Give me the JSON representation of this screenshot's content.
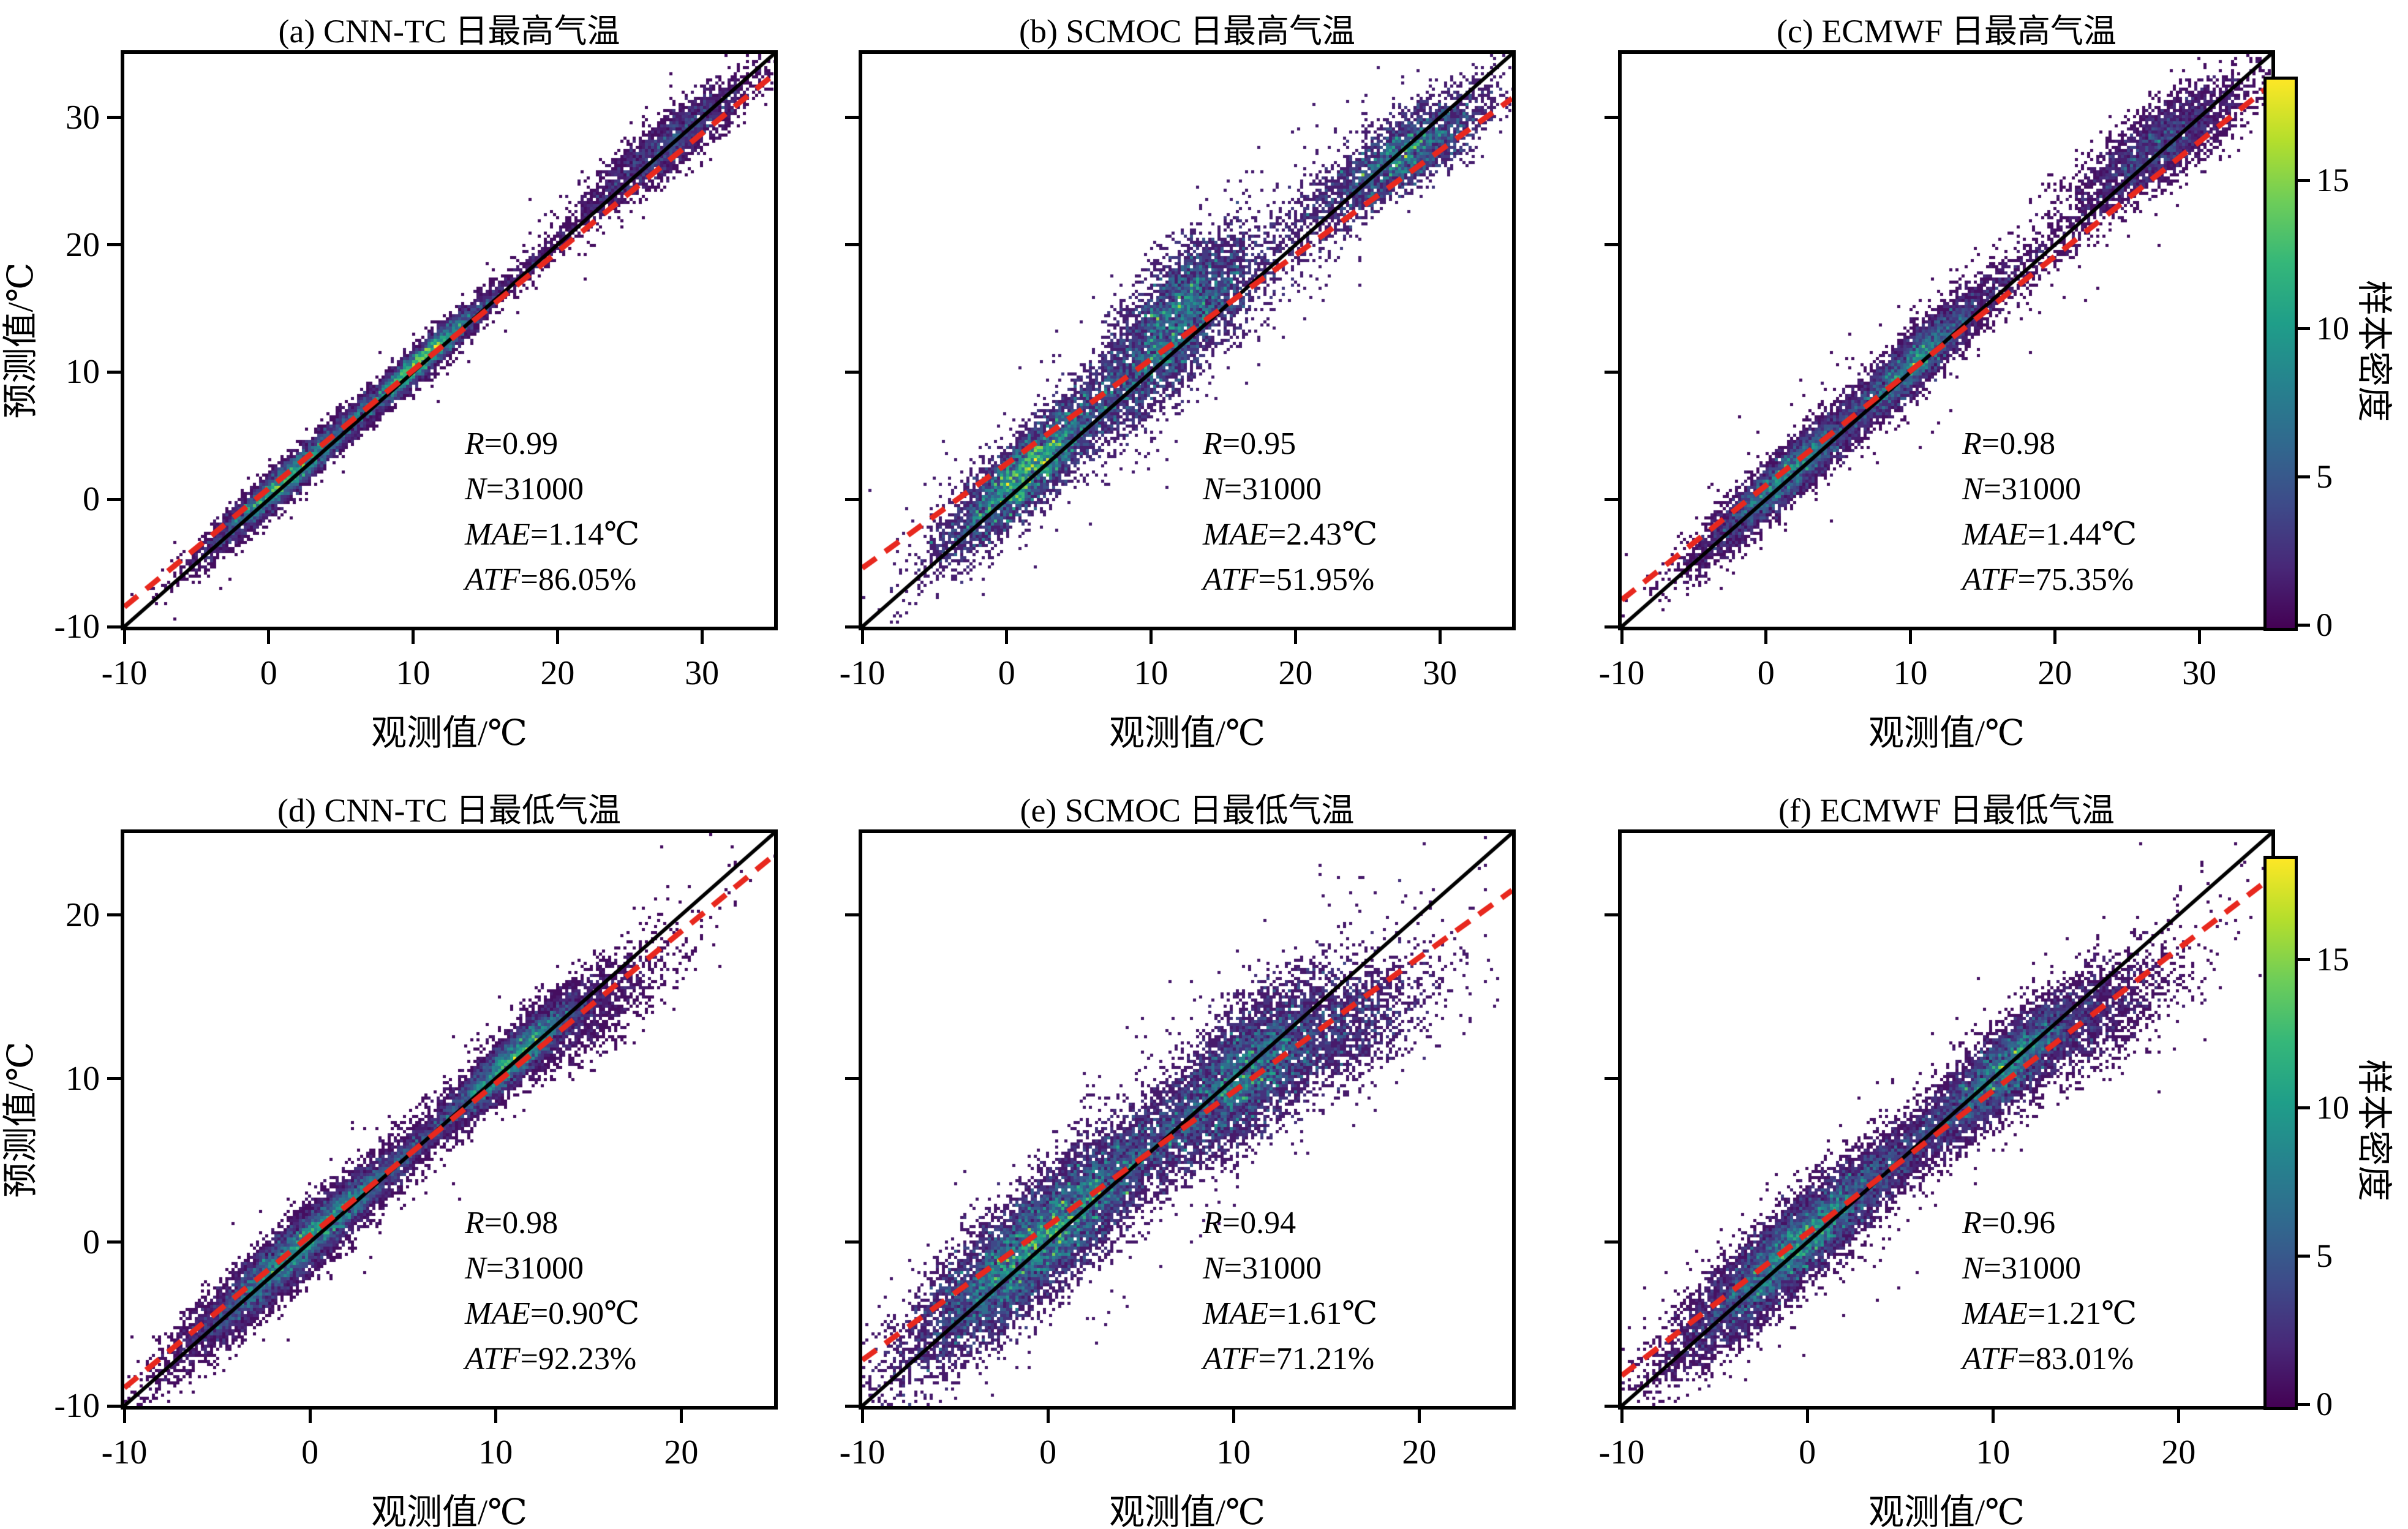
{
  "figure": {
    "colorbar": {
      "label": "样本密度",
      "ticks": [
        0,
        5,
        10,
        15
      ],
      "vmax": 18.5,
      "colormap": "viridis",
      "colormap_stops": [
        "#440154",
        "#482878",
        "#3e4a89",
        "#31688e",
        "#26828e",
        "#1f9e89",
        "#35b779",
        "#6dcd59",
        "#b4de2c",
        "#fde725"
      ]
    },
    "identity_line_color": "#000000",
    "fit_line_color": "#e8281e"
  },
  "chart_data": [
    {
      "id": "a",
      "type": "scatter-density",
      "title": "(a) CNN-TC 日最高气温",
      "xlabel": "观测值/℃",
      "ylabel": "预测值/℃",
      "xlim": [
        -10,
        35
      ],
      "ylim": [
        -10,
        35
      ],
      "xticks": [
        -10,
        0,
        10,
        20,
        30
      ],
      "yticks": [
        -10,
        0,
        10,
        20,
        30
      ],
      "stats": [
        {
          "label": "R",
          "value": "0.99"
        },
        {
          "label": "N",
          "value": "31000"
        },
        {
          "label": "MAE",
          "value": "1.14℃"
        },
        {
          "label": "ATF",
          "value": "86.05%"
        }
      ],
      "fit_line": {
        "slope": 0.93,
        "intercept": 0.85
      },
      "clusters": [
        {
          "x": 1.3,
          "y": 1.6,
          "sx": 2.8,
          "sy": 2.9,
          "rho": 0.965,
          "w": 0.4
        },
        {
          "x": 10.4,
          "y": 10.7,
          "sx": 2.3,
          "sy": 2.4,
          "rho": 0.955,
          "w": 0.32
        },
        {
          "x": 27.8,
          "y": 28.0,
          "sx": 2.9,
          "sy": 2.7,
          "rho": 0.9,
          "w": 0.2
        },
        {
          "x": 16.5,
          "y": 16.7,
          "sx": 5.5,
          "sy": 5.4,
          "rho": 0.995,
          "w": 0.06
        },
        {
          "x": 12.0,
          "y": 12.0,
          "sx": 12,
          "sy": 12,
          "rho": 0.99,
          "w": 0.02
        }
      ]
    },
    {
      "id": "b",
      "type": "scatter-density",
      "title": "(b) SCMOC 日最高气温",
      "xlabel": "观测值/℃",
      "ylabel": "预测值/℃",
      "xlim": [
        -10,
        35
      ],
      "ylim": [
        -10,
        35
      ],
      "xticks": [
        -10,
        0,
        10,
        20,
        30
      ],
      "yticks": [
        -10,
        0,
        10,
        20,
        30
      ],
      "stats": [
        {
          "label": "R",
          "value": "0.95"
        },
        {
          "label": "N",
          "value": "31000"
        },
        {
          "label": "MAE",
          "value": "2.43℃"
        },
        {
          "label": "ATF",
          "value": "51.95%"
        }
      ],
      "fit_line": {
        "slope": 0.82,
        "intercept": 2.8
      },
      "clusters": [
        {
          "x": 1.4,
          "y": 2.2,
          "sx": 3.0,
          "sy": 3.4,
          "rho": 0.88,
          "w": 0.36
        },
        {
          "x": 10.8,
          "y": 12.6,
          "sx": 2.6,
          "sy": 3.8,
          "rho": 0.72,
          "w": 0.27
        },
        {
          "x": 13.5,
          "y": 16.5,
          "sx": 2.2,
          "sy": 2.6,
          "rho": 0.55,
          "w": 0.07
        },
        {
          "x": 27.6,
          "y": 27.2,
          "sx": 2.8,
          "sy": 2.4,
          "rho": 0.78,
          "w": 0.2
        },
        {
          "x": 19.0,
          "y": 19.5,
          "sx": 5.5,
          "sy": 5.5,
          "rho": 0.93,
          "w": 0.07
        },
        {
          "x": 12.0,
          "y": 13.0,
          "sx": 12,
          "sy": 12,
          "rho": 0.95,
          "w": 0.03
        }
      ]
    },
    {
      "id": "c",
      "type": "scatter-density",
      "title": "(c) ECMWF 日最高气温",
      "xlabel": "观测值/℃",
      "ylabel": "预测值/℃",
      "xlim": [
        -10,
        35
      ],
      "ylim": [
        -10,
        35
      ],
      "xticks": [
        -10,
        0,
        10,
        20,
        30
      ],
      "yticks": [
        -10,
        0,
        10,
        20,
        30
      ],
      "stats": [
        {
          "label": "R",
          "value": "0.98"
        },
        {
          "label": "N",
          "value": "31000"
        },
        {
          "label": "MAE",
          "value": "1.44℃"
        },
        {
          "label": "ATF",
          "value": "75.35%"
        }
      ],
      "fit_line": {
        "slope": 0.9,
        "intercept": 1.1
      },
      "clusters": [
        {
          "x": 1.4,
          "y": 1.8,
          "sx": 2.9,
          "sy": 3.1,
          "rho": 0.93,
          "w": 0.38
        },
        {
          "x": 10.4,
          "y": 10.9,
          "sx": 2.4,
          "sy": 2.7,
          "rho": 0.9,
          "w": 0.31
        },
        {
          "x": 27.4,
          "y": 27.9,
          "sx": 3.0,
          "sy": 2.7,
          "rho": 0.8,
          "w": 0.22
        },
        {
          "x": 17.0,
          "y": 17.4,
          "sx": 5.5,
          "sy": 5.5,
          "rho": 0.97,
          "w": 0.06
        },
        {
          "x": 12.0,
          "y": 12.5,
          "sx": 12,
          "sy": 12,
          "rho": 0.97,
          "w": 0.03
        }
      ]
    },
    {
      "id": "d",
      "type": "scatter-density",
      "title": "(d) CNN-TC 日最低气温",
      "xlabel": "观测值/℃",
      "ylabel": "预测值/℃",
      "xlim": [
        -10,
        25
      ],
      "ylim": [
        -10,
        25
      ],
      "xticks": [
        -10,
        0,
        10,
        20
      ],
      "yticks": [
        -10,
        0,
        10,
        20
      ],
      "stats": [
        {
          "label": "R",
          "value": "0.98"
        },
        {
          "label": "N",
          "value": "31000"
        },
        {
          "label": "MAE",
          "value": "0.90℃"
        },
        {
          "label": "ATF",
          "value": "92.23%"
        }
      ],
      "fit_line": {
        "slope": 0.93,
        "intercept": 0.4
      },
      "clusters": [
        {
          "x": -0.8,
          "y": -0.6,
          "sx": 3.0,
          "sy": 3.1,
          "rho": 0.95,
          "w": 0.5
        },
        {
          "x": 10.8,
          "y": 11.0,
          "sx": 1.9,
          "sy": 2.0,
          "rho": 0.92,
          "w": 0.28
        },
        {
          "x": 4.5,
          "y": 4.6,
          "sx": 3.5,
          "sy": 3.5,
          "rho": 0.99,
          "w": 0.1
        },
        {
          "x": 14.5,
          "y": 13.8,
          "sx": 2.6,
          "sy": 2.2,
          "rho": 0.8,
          "w": 0.09
        },
        {
          "x": 5.0,
          "y": 5.0,
          "sx": 9,
          "sy": 9,
          "rho": 0.98,
          "w": 0.03
        }
      ]
    },
    {
      "id": "e",
      "type": "scatter-density",
      "title": "(e) SCMOC 日最低气温",
      "xlabel": "观测值/℃",
      "ylabel": "预测值/℃",
      "xlim": [
        -10,
        25
      ],
      "ylim": [
        -10,
        25
      ],
      "xticks": [
        -10,
        0,
        10,
        20
      ],
      "yticks": [
        -10,
        0,
        10,
        20
      ],
      "stats": [
        {
          "label": "R",
          "value": "0.94"
        },
        {
          "label": "N",
          "value": "31000"
        },
        {
          "label": "MAE",
          "value": "1.61℃"
        },
        {
          "label": "ATF",
          "value": "71.21%"
        }
      ],
      "fit_line": {
        "slope": 0.82,
        "intercept": 1.0
      },
      "clusters": [
        {
          "x": -0.9,
          "y": -0.3,
          "sx": 3.3,
          "sy": 3.6,
          "rho": 0.86,
          "w": 0.48
        },
        {
          "x": 10.6,
          "y": 10.2,
          "sx": 2.3,
          "sy": 2.8,
          "rho": 0.68,
          "w": 0.26
        },
        {
          "x": 4.5,
          "y": 4.8,
          "sx": 3.6,
          "sy": 3.8,
          "rho": 0.92,
          "w": 0.12
        },
        {
          "x": 15.5,
          "y": 12.8,
          "sx": 2.8,
          "sy": 2.4,
          "rho": 0.6,
          "w": 0.1
        },
        {
          "x": 5.0,
          "y": 5.0,
          "sx": 9,
          "sy": 9,
          "rho": 0.93,
          "w": 0.04
        }
      ]
    },
    {
      "id": "f",
      "type": "scatter-density",
      "title": "(f) ECMWF 日最低气温",
      "xlabel": "观测值/℃",
      "ylabel": "预测值/℃",
      "xlim": [
        -10,
        25
      ],
      "ylim": [
        -10,
        25
      ],
      "xticks": [
        -10,
        0,
        10,
        20
      ],
      "yticks": [
        -10,
        0,
        10,
        20
      ],
      "stats": [
        {
          "label": "R",
          "value": "0.96"
        },
        {
          "label": "N",
          "value": "31000"
        },
        {
          "label": "MAE",
          "value": "1.21℃"
        },
        {
          "label": "ATF",
          "value": "83.01%"
        }
      ],
      "fit_line": {
        "slope": 0.87,
        "intercept": 0.55
      },
      "clusters": [
        {
          "x": -0.9,
          "y": -0.5,
          "sx": 3.1,
          "sy": 3.3,
          "rho": 0.91,
          "w": 0.49
        },
        {
          "x": 10.7,
          "y": 10.6,
          "sx": 2.1,
          "sy": 2.3,
          "rho": 0.85,
          "w": 0.27
        },
        {
          "x": 4.5,
          "y": 4.7,
          "sx": 3.5,
          "sy": 3.6,
          "rho": 0.96,
          "w": 0.11
        },
        {
          "x": 15.0,
          "y": 13.4,
          "sx": 2.7,
          "sy": 2.3,
          "rho": 0.7,
          "w": 0.1
        },
        {
          "x": 5.0,
          "y": 5.0,
          "sx": 9,
          "sy": 9,
          "rho": 0.96,
          "w": 0.03
        }
      ]
    }
  ]
}
